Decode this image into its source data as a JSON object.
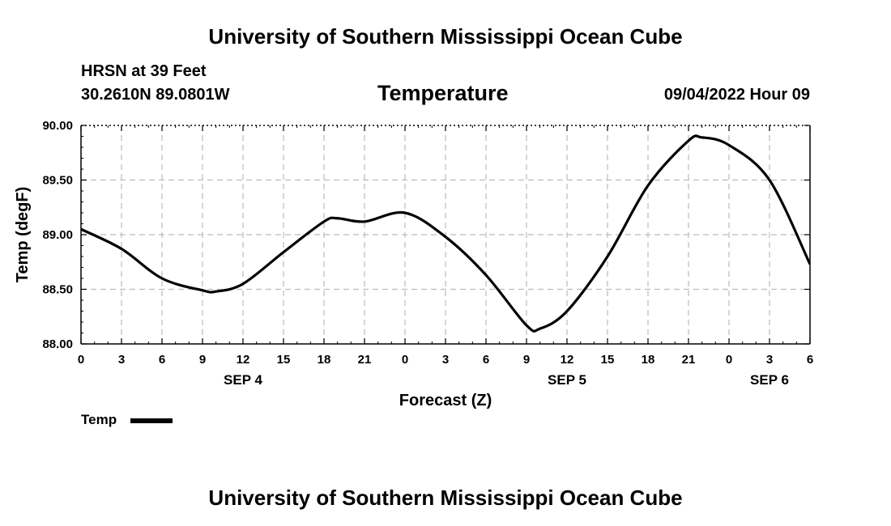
{
  "header": {
    "title": "University of Southern Mississippi Ocean Cube",
    "station": "HRSN at 39 Feet",
    "coordinates": "30.2610N  89.0801W",
    "chart_title": "Temperature",
    "datetime": "09/04/2022 Hour 09"
  },
  "footer": {
    "title": "University of Southern Mississippi Ocean Cube"
  },
  "legend": {
    "label": "Temp"
  },
  "colors": {
    "line": "#000000",
    "grid": "#bbbbbb",
    "background": "#ffffff"
  },
  "chart_data": {
    "type": "line",
    "title": "Temperature",
    "xlabel": "Forecast (Z)",
    "ylabel": "Temp (degF)",
    "xlim": [
      0,
      54
    ],
    "ylim": [
      88.0,
      90.0
    ],
    "y_ticks": [
      88.0,
      88.5,
      89.0,
      89.5,
      90.0
    ],
    "y_tick_labels": [
      "88.00",
      "88.50",
      "89.00",
      "89.50",
      "90.00"
    ],
    "x_ticks": [
      0,
      3,
      6,
      9,
      12,
      15,
      18,
      21,
      24,
      27,
      30,
      33,
      36,
      39,
      42,
      45,
      48,
      51,
      54
    ],
    "x_tick_labels": [
      "0",
      "3",
      "6",
      "9",
      "12",
      "15",
      "18",
      "21",
      "0",
      "3",
      "6",
      "9",
      "12",
      "15",
      "18",
      "21",
      "0",
      "3",
      "6"
    ],
    "day_labels": [
      {
        "x": 12,
        "label": "SEP 4"
      },
      {
        "x": 36,
        "label": "SEP 5"
      },
      {
        "x": 51,
        "label": "SEP 6"
      }
    ],
    "series": [
      {
        "name": "Temp",
        "x": [
          0,
          3,
          6,
          9,
          10,
          12,
          15,
          18,
          19,
          21,
          24,
          27,
          30,
          33,
          34,
          36,
          39,
          42,
          45,
          46,
          48,
          51,
          54
        ],
        "values": [
          89.05,
          88.87,
          88.6,
          88.49,
          88.48,
          88.55,
          88.84,
          89.12,
          89.15,
          89.12,
          89.2,
          88.98,
          88.63,
          88.17,
          88.14,
          88.3,
          88.8,
          89.45,
          89.86,
          89.89,
          89.82,
          89.5,
          88.73
        ]
      }
    ]
  }
}
